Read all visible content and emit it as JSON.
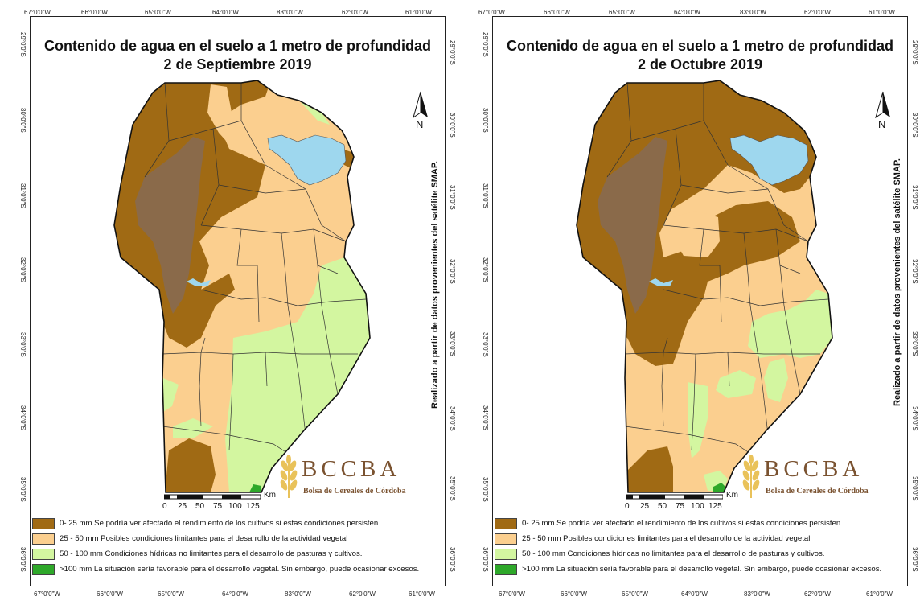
{
  "colors": {
    "class_0_25": "#a06a14",
    "class_25_50": "#fbcf8f",
    "class_50_100": "#d3f6a0",
    "class_100_plus": "#2ea82a",
    "sierras": "#8a6a4a",
    "water": "#9ed7ee",
    "district_lines": "#333333"
  },
  "axes": {
    "lon_labels": [
      "67°0'0\"W",
      "66°0'0\"W",
      "65°0'0\"W",
      "64°0'0\"W",
      "83°0'0\"W",
      "62°0'0\"W",
      "61°0'0\"W"
    ],
    "lat_labels": [
      "29°0'0\"S",
      "30°0'0\"S",
      "31°0'0\"S",
      "32°0'0\"S",
      "33°0'0\"S",
      "34°0'0\"S",
      "35°0'0\"S",
      "36°0'0\"S"
    ]
  },
  "north_arrow": {
    "label": "N",
    "icon": "north-arrow-icon"
  },
  "scale_bar": {
    "ticks": [
      "0",
      "25",
      "50",
      "75",
      "100",
      "125"
    ],
    "unit": "Km"
  },
  "side_note": "Realizado a partir de datos provenientes del satélite SMAP.",
  "logo": {
    "title": "BCCBA",
    "subtitle": "Bolsa de Cereales de Córdoba",
    "icon": "wheat-icon"
  },
  "legend": [
    {
      "range": "0- 25 mm",
      "text": "0- 25 mm Se podría ver afectado el rendimiento de los cultivos si estas condiciones persisten.",
      "color_key": "class_0_25"
    },
    {
      "range": "25 - 50 mm",
      "text": "25 - 50 mm Posibles condiciones limitantes para el desarrollo de la actividad vegetal",
      "color_key": "class_25_50"
    },
    {
      "range": "50 - 100 mm",
      "text": "50 - 100 mm Condiciones hídricas no limitantes para el desarrollo de pasturas y cultivos.",
      "color_key": "class_50_100"
    },
    {
      "range": ">100 mm",
      "text": ">100 mm La situación sería favorable para el desarrollo vegetal. Sin embargo, puede ocasionar excesos.",
      "color_key": "class_100_plus"
    }
  ],
  "maps": [
    {
      "id": "septiembre",
      "title_line1": "Contenido de agua en el suelo a 1 metro de profundidad",
      "title_line2": "2 de Septiembre 2019"
    },
    {
      "id": "octubre",
      "title_line1": "Contenido de agua en el suelo a 1 metro de profundidad",
      "title_line2": "2 de Octubre 2019"
    }
  ]
}
